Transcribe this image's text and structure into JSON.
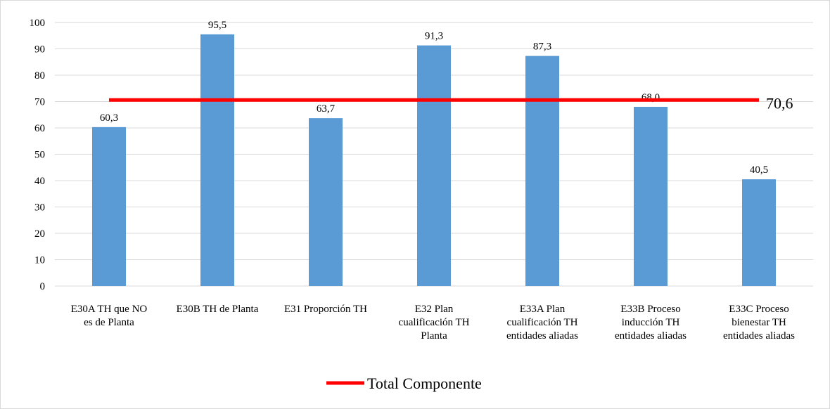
{
  "chart_data": {
    "type": "bar",
    "categories": [
      [
        "E30A TH que NO",
        "es de Planta"
      ],
      [
        "E30B TH de Planta"
      ],
      [
        "E31 Proporción TH"
      ],
      [
        "E32 Plan",
        "cualificación TH",
        "Planta"
      ],
      [
        "E33A Plan",
        "cualificación TH",
        "entidades aliadas"
      ],
      [
        "E33B Proceso",
        "inducción TH",
        "entidades aliadas"
      ],
      [
        "E33C Proceso",
        "bienestar TH",
        "entidades aliadas"
      ]
    ],
    "values": [
      60.3,
      95.5,
      63.7,
      91.3,
      87.3,
      68.0,
      40.5
    ],
    "value_labels": [
      "60,3",
      "95,5",
      "63,7",
      "91,3",
      "87,3",
      "68,0",
      "40,5"
    ],
    "ylim": [
      0,
      100
    ],
    "yticks": [
      0,
      10,
      20,
      30,
      40,
      50,
      60,
      70,
      80,
      90,
      100
    ],
    "grid": true,
    "total_line": {
      "name": "Total Componente",
      "value": 70.6,
      "label": "70,6"
    },
    "legend_position": "bottom",
    "colors": {
      "bar": "#5b9bd5",
      "total_line": "#ff0000",
      "grid": "#d9d9d9"
    }
  }
}
